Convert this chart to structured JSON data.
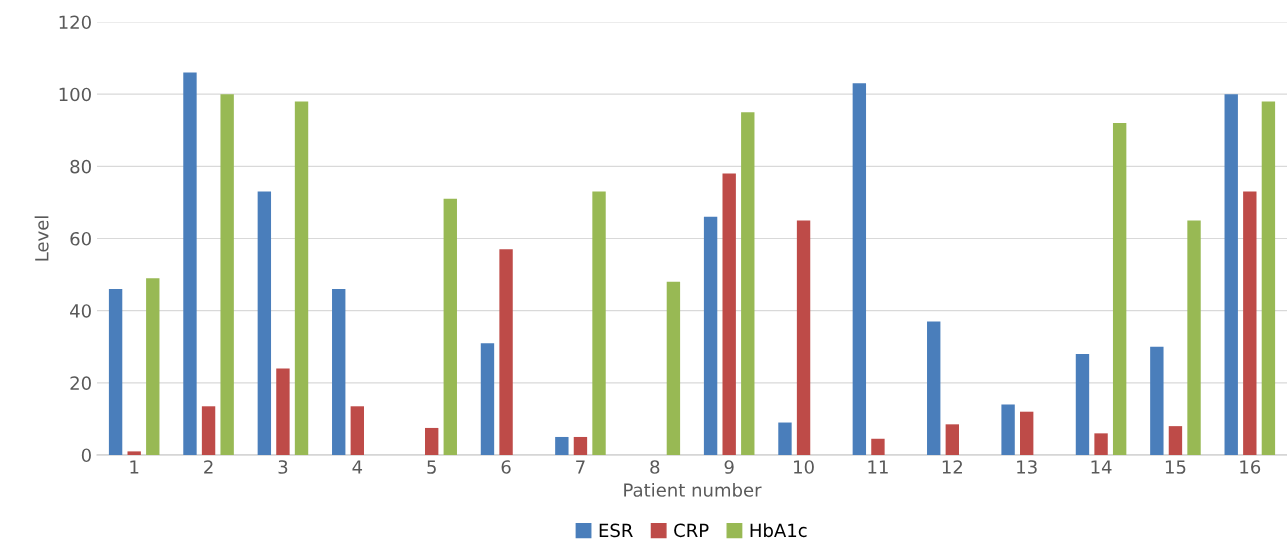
{
  "chart_data": {
    "type": "bar",
    "xlabel": "Patient number",
    "ylabel": "Level",
    "categories": [
      "1",
      "2",
      "3",
      "4",
      "5",
      "6",
      "7",
      "8",
      "9",
      "10",
      "11",
      "12",
      "13",
      "14",
      "15",
      "16"
    ],
    "series": [
      {
        "name": "ESR",
        "color": "#4a7ebb",
        "values": [
          46,
          106,
          73,
          46,
          null,
          31,
          5,
          null,
          66,
          9,
          103,
          37,
          14,
          28,
          30,
          100
        ]
      },
      {
        "name": "CRP",
        "color": "#be4b48",
        "values": [
          1,
          13.5,
          24,
          13.5,
          7.5,
          57,
          5,
          null,
          78,
          65,
          4.5,
          8.5,
          12,
          6,
          8,
          73
        ]
      },
      {
        "name": "HbA1c",
        "color": "#98b954",
        "values": [
          49,
          100,
          98,
          null,
          71,
          null,
          73,
          48,
          95,
          null,
          null,
          null,
          null,
          92,
          65,
          98
        ]
      }
    ],
    "ylim": [
      0,
      120
    ],
    "yticks": [
      0,
      20,
      40,
      60,
      80,
      100,
      120
    ],
    "grid": "y",
    "legend": "bottom"
  }
}
